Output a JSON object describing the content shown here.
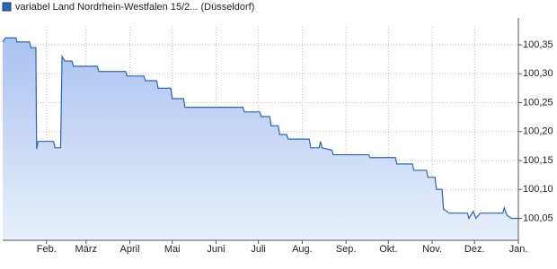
{
  "chart_data": {
    "type": "line",
    "area": true,
    "grid": true,
    "legend": "top-left",
    "series": [
      {
        "name": "variabel Land Nordrhein-Westfalen 15/2... (Düsseldorf)",
        "color": "#2f62b8",
        "x": [
          0,
          2,
          9.5,
          10,
          19,
          20,
          23.5,
          24,
          25,
          36,
          37,
          41,
          42,
          44,
          49,
          50,
          67,
          68,
          87,
          88,
          100,
          101,
          109,
          110,
          119,
          120,
          128,
          129,
          170,
          171,
          182,
          183,
          189,
          190,
          195,
          196,
          201,
          202,
          217,
          218,
          224,
          225,
          226,
          233,
          234,
          259,
          260,
          278,
          279,
          290,
          291,
          300,
          301,
          306,
          307,
          311,
          312,
          316,
          329,
          330,
          333,
          335,
          338,
          354,
          355,
          357,
          360,
          365
        ],
        "values": [
          100.355,
          100.362,
          100.362,
          100.355,
          100.355,
          100.345,
          100.345,
          100.17,
          100.183,
          100.183,
          100.172,
          100.172,
          100.33,
          100.322,
          100.322,
          100.313,
          100.313,
          100.304,
          100.304,
          100.296,
          100.296,
          100.288,
          100.288,
          100.275,
          100.275,
          100.257,
          100.257,
          100.242,
          100.242,
          100.234,
          100.234,
          100.226,
          100.226,
          100.21,
          100.21,
          100.195,
          100.195,
          100.187,
          100.187,
          100.172,
          100.172,
          100.183,
          100.172,
          100.168,
          100.16,
          100.16,
          100.155,
          100.155,
          100.144,
          100.144,
          100.133,
          100.133,
          100.121,
          100.121,
          100.1,
          100.1,
          100.066,
          100.059,
          100.059,
          100.05,
          100.062,
          100.05,
          100.059,
          100.059,
          100.068,
          100.055,
          100.05,
          100.05
        ]
      }
    ],
    "xlim": [
      0,
      365
    ],
    "xticks": [
      {
        "value": 31,
        "label": "Feb."
      },
      {
        "value": 59,
        "label": "März"
      },
      {
        "value": 90,
        "label": "April"
      },
      {
        "value": 120,
        "label": "Mai"
      },
      {
        "value": 151,
        "label": "Juni"
      },
      {
        "value": 181,
        "label": "Juli"
      },
      {
        "value": 212,
        "label": "Aug."
      },
      {
        "value": 243,
        "label": "Sep."
      },
      {
        "value": 273,
        "label": "Okt."
      },
      {
        "value": 304,
        "label": "Nov."
      },
      {
        "value": 334,
        "label": "Dez."
      },
      {
        "value": 365,
        "label": "Jan."
      }
    ],
    "ylim": [
      100.012,
      100.381
    ],
    "yticks": [
      {
        "value": 100.05,
        "label": "100,05"
      },
      {
        "value": 100.1,
        "label": "100,10"
      },
      {
        "value": 100.15,
        "label": "100,15"
      },
      {
        "value": 100.2,
        "label": "100,20"
      },
      {
        "value": 100.25,
        "label": "100,25"
      },
      {
        "value": 100.3,
        "label": "100,30"
      },
      {
        "value": 100.35,
        "label": "100,35"
      }
    ]
  }
}
